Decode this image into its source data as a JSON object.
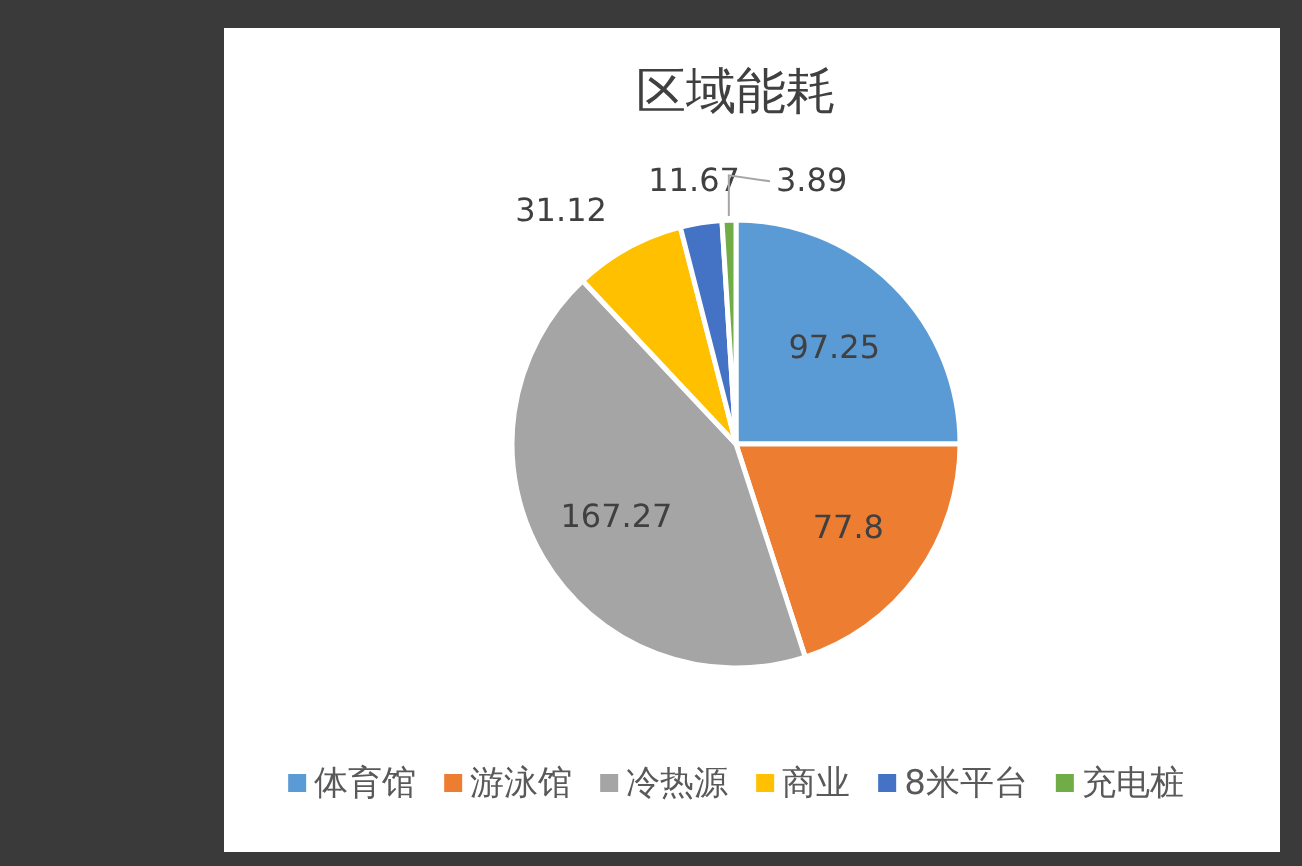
{
  "chart_data": {
    "type": "pie",
    "title": "区域能耗",
    "categories": [
      "体育馆",
      "游泳馆",
      "冷热源",
      "商业",
      "8米平台",
      "充电桩"
    ],
    "values": [
      97.25,
      77.8,
      167.27,
      31.12,
      11.67,
      3.89
    ],
    "colors": [
      "#5b9bd5",
      "#ed7d31",
      "#a5a5a5",
      "#ffc000",
      "#4472c4",
      "#70ad47"
    ],
    "data_labels": true,
    "legend": "bottom"
  }
}
